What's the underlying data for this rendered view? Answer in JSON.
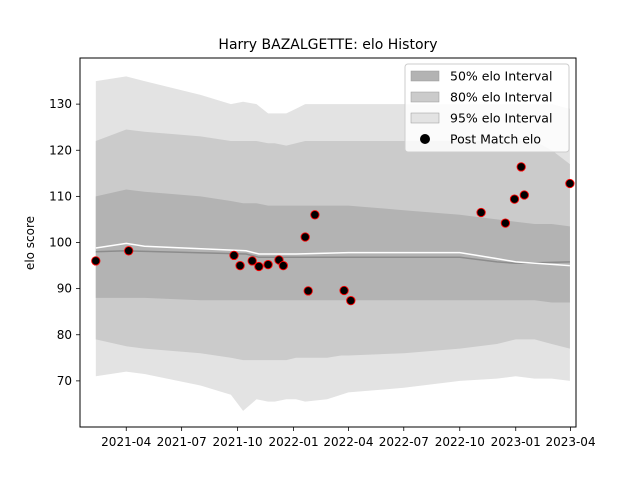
{
  "chart_data": {
    "type": "area",
    "title": "Harry BAZALGETTE: elo History",
    "xlabel": "",
    "ylabel": "elo score",
    "xlim": [
      "2021-01-15",
      "2023-04-10"
    ],
    "ylim": [
      60,
      140
    ],
    "x_ticks": [
      "2021-04",
      "2021-07",
      "2021-10",
      "2022-01",
      "2022-04",
      "2022-07",
      "2022-10",
      "2023-01",
      "2023-04"
    ],
    "y_ticks": [
      70,
      80,
      90,
      100,
      110,
      120,
      130
    ],
    "legend_position": "top-right",
    "colors": {
      "band50": "#b3b3b3",
      "band80": "#cbcbcb",
      "band95": "#e3e3e3",
      "mean": "#ffffff",
      "median": "#8c8c8c",
      "point_fill": "#000000",
      "point_edge": "#ff0000"
    },
    "legend": [
      {
        "key": "band50",
        "label": "50% elo Interval",
        "marker": "rect"
      },
      {
        "key": "band80",
        "label": "80% elo Interval",
        "marker": "rect"
      },
      {
        "key": "band95",
        "label": "95% elo Interval",
        "marker": "rect"
      },
      {
        "key": "points",
        "label": "Post Match elo",
        "marker": "circle"
      }
    ],
    "bands": {
      "x": [
        "2021-02-10",
        "2021-04-01",
        "2021-05-01",
        "2021-08-01",
        "2021-09-20",
        "2021-10-10",
        "2021-11-01",
        "2021-11-20",
        "2021-12-01",
        "2021-12-20",
        "2022-01-05",
        "2022-01-20",
        "2022-02-25",
        "2022-03-20",
        "2022-04-01",
        "2022-07-01",
        "2022-10-01",
        "2022-12-01",
        "2023-01-01",
        "2023-02-01",
        "2023-03-01",
        "2023-03-31"
      ],
      "band95": {
        "upper": [
          135,
          136,
          135,
          132,
          130,
          130.5,
          130,
          128,
          128,
          128,
          129,
          130,
          130,
          130,
          130,
          130,
          130,
          130,
          130,
          130,
          130,
          129
        ],
        "lower": [
          71,
          72,
          71.5,
          69,
          67,
          63.5,
          66,
          65.5,
          65.5,
          66,
          66,
          65.5,
          66,
          67,
          67.5,
          68.5,
          70,
          70.5,
          71,
          70.5,
          70.5,
          70
        ]
      },
      "band80": {
        "upper": [
          122,
          124.5,
          124,
          123,
          122,
          122,
          122,
          121.5,
          121.5,
          121,
          121.5,
          122,
          122,
          122,
          122,
          122,
          122,
          122,
          122,
          122,
          120,
          117
        ],
        "lower": [
          79,
          77.5,
          77,
          76,
          75,
          74.5,
          74.5,
          74.5,
          74.5,
          74.5,
          75,
          75,
          75,
          75.5,
          75.5,
          76,
          77,
          78,
          79,
          79,
          78,
          77
        ]
      },
      "band50": {
        "upper": [
          110,
          111.5,
          111,
          110,
          109,
          108.5,
          108.5,
          108,
          108,
          108,
          108,
          108,
          108,
          108,
          108,
          107,
          106,
          105,
          104.5,
          104,
          104,
          103.5
        ],
        "lower": [
          88,
          88,
          88,
          87.5,
          87.5,
          87.5,
          87.5,
          87.5,
          87.5,
          87.5,
          87.5,
          87.5,
          87.5,
          87.5,
          87.5,
          87.5,
          87.5,
          87.5,
          87.5,
          87.5,
          87,
          87
        ]
      }
    },
    "mean_line": {
      "x": [
        "2021-02-10",
        "2021-04-01",
        "2021-05-01",
        "2021-10-15",
        "2021-11-05",
        "2022-01-05",
        "2022-04-01",
        "2022-10-01",
        "2022-12-01",
        "2023-01-01",
        "2023-03-31"
      ],
      "y": [
        98.8,
        99.8,
        99.2,
        98.2,
        97.5,
        97.5,
        97.8,
        97.8,
        96.5,
        95.8,
        95
      ]
    },
    "median_line": {
      "x": [
        "2021-02-10",
        "2021-04-01",
        "2021-10-15",
        "2021-11-05",
        "2022-01-05",
        "2022-04-01",
        "2022-10-01",
        "2022-12-01",
        "2023-01-01",
        "2023-03-31"
      ],
      "y": [
        98,
        98.2,
        97.5,
        96.8,
        96.8,
        96.8,
        96.8,
        95.8,
        95.5,
        95.8
      ]
    },
    "points": {
      "x": [
        "2021-02-10",
        "2021-04-05",
        "2021-09-25",
        "2021-10-05",
        "2021-10-25",
        "2021-11-05",
        "2021-11-20",
        "2021-12-08",
        "2021-12-15",
        "2022-01-20",
        "2022-01-25",
        "2022-02-05",
        "2022-03-25",
        "2022-04-05",
        "2022-11-05",
        "2022-12-15",
        "2022-12-30",
        "2023-01-10",
        "2023-01-15",
        "2023-03-31"
      ],
      "y": [
        96,
        98.2,
        97.2,
        95,
        96,
        94.8,
        95.2,
        96.2,
        95,
        101.2,
        89.5,
        106,
        89.6,
        87.4,
        106.5,
        104.2,
        109.4,
        116.4,
        110.3,
        112.8
      ]
    }
  }
}
